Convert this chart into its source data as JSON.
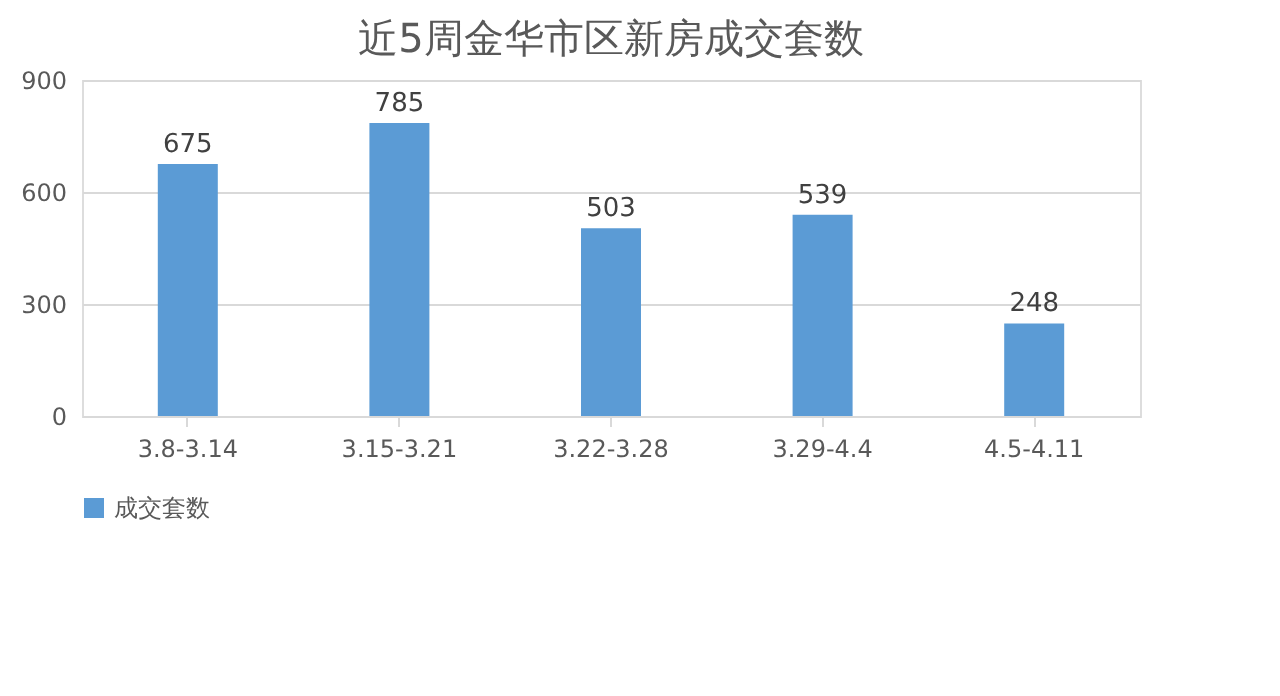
{
  "chart_data": {
    "type": "bar",
    "title": "近5周金华市区新房成交套数",
    "categories": [
      "3.8-3.14",
      "3.15-3.21",
      "3.22-3.28",
      "3.29-4.4",
      "4.5-4.11"
    ],
    "series": [
      {
        "name": "成交套数",
        "color": "#5b9bd5",
        "values": [
          675,
          785,
          503,
          539,
          248
        ]
      }
    ],
    "ylim": [
      0,
      900
    ],
    "yticks": [
      0,
      300,
      600,
      900
    ],
    "grid": "y",
    "legend": "bottom",
    "data_labels": true
  }
}
